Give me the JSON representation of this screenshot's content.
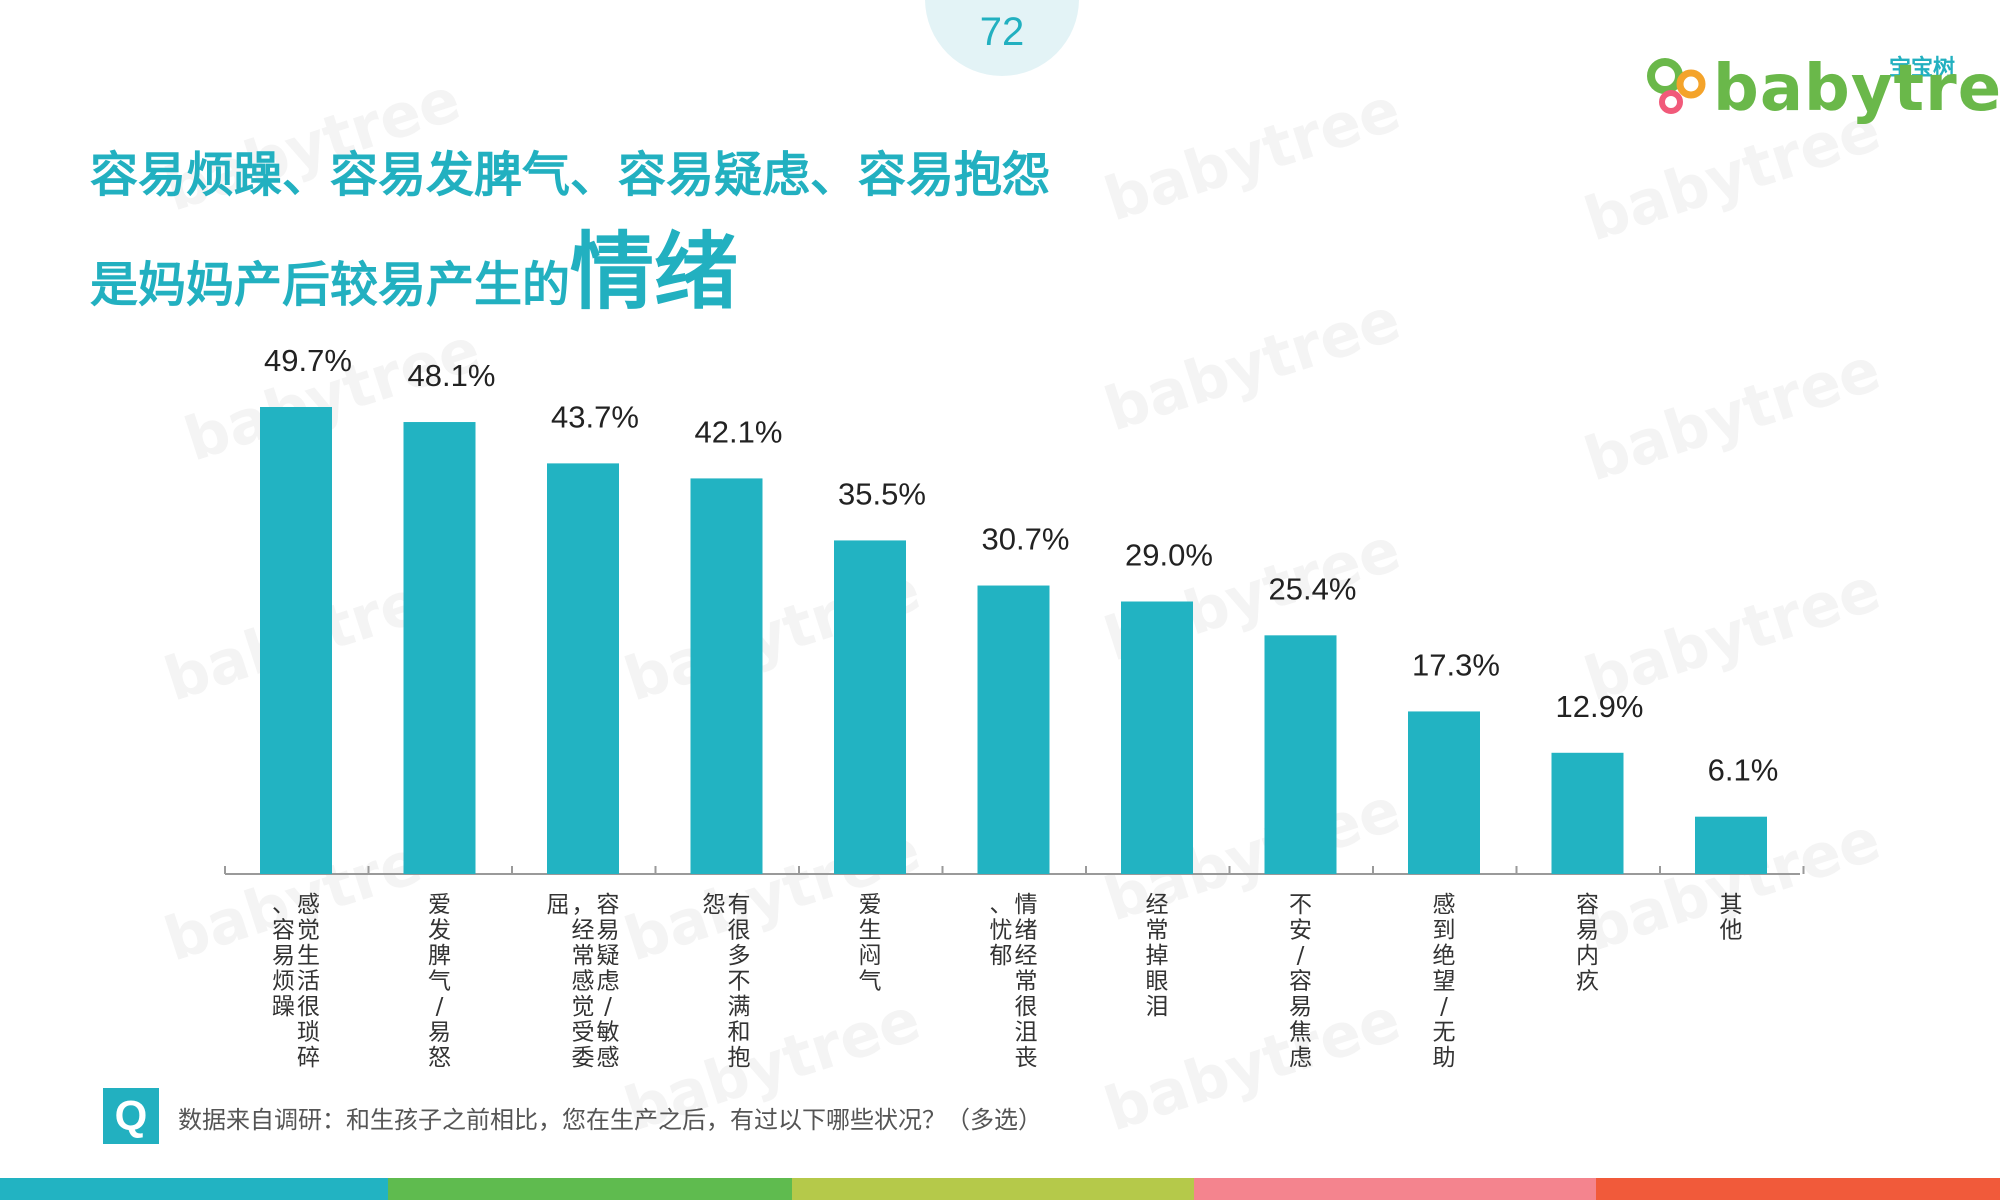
{
  "page": {
    "number": "72"
  },
  "logo": {
    "cn": "宝宝树",
    "word": "babytree"
  },
  "watermark": {
    "text": "babytree"
  },
  "title": {
    "line1": "容易烦躁、容易发脾气、容易疑虑、容易抱怨",
    "line2_prefix": "是妈妈产后较易产生的",
    "line2_emphasis": "情绪"
  },
  "chart_data": {
    "type": "bar",
    "categories": [
      "感觉生活很琐碎、容易烦躁",
      "爱发脾气/易怒",
      "容易疑虑/敏感，经常感觉受委屈",
      "有很多不满和抱怨",
      "爱生闷气",
      "情绪经常很沮丧、忧郁",
      "经常掉眼泪",
      "不安/容易焦虑",
      "感到绝望/无助",
      "容易内疚",
      "其他"
    ],
    "values": [
      49.7,
      48.1,
      43.7,
      42.1,
      35.5,
      30.7,
      29.0,
      25.4,
      17.3,
      12.9,
      6.1
    ],
    "value_labels": [
      "49.7%",
      "48.1%",
      "43.7%",
      "42.1%",
      "35.5%",
      "30.7%",
      "29.0%",
      "25.4%",
      "17.3%",
      "12.9%",
      "6.1%"
    ],
    "unit": "%",
    "ylim": [
      0,
      50
    ],
    "grid": false,
    "legend": "none",
    "bar_color": "#22b3c2"
  },
  "footer": {
    "q_label": "Q",
    "source": "数据来自调研：和生孩子之前相比，您在生产之后，有过以下哪些状况？（多选）"
  },
  "colors": {
    "accent": "#22b0c0",
    "stripes": [
      "#22b3c2",
      "#5fbb4f",
      "#b5c94a",
      "#f4848e",
      "#f15a3a"
    ]
  }
}
